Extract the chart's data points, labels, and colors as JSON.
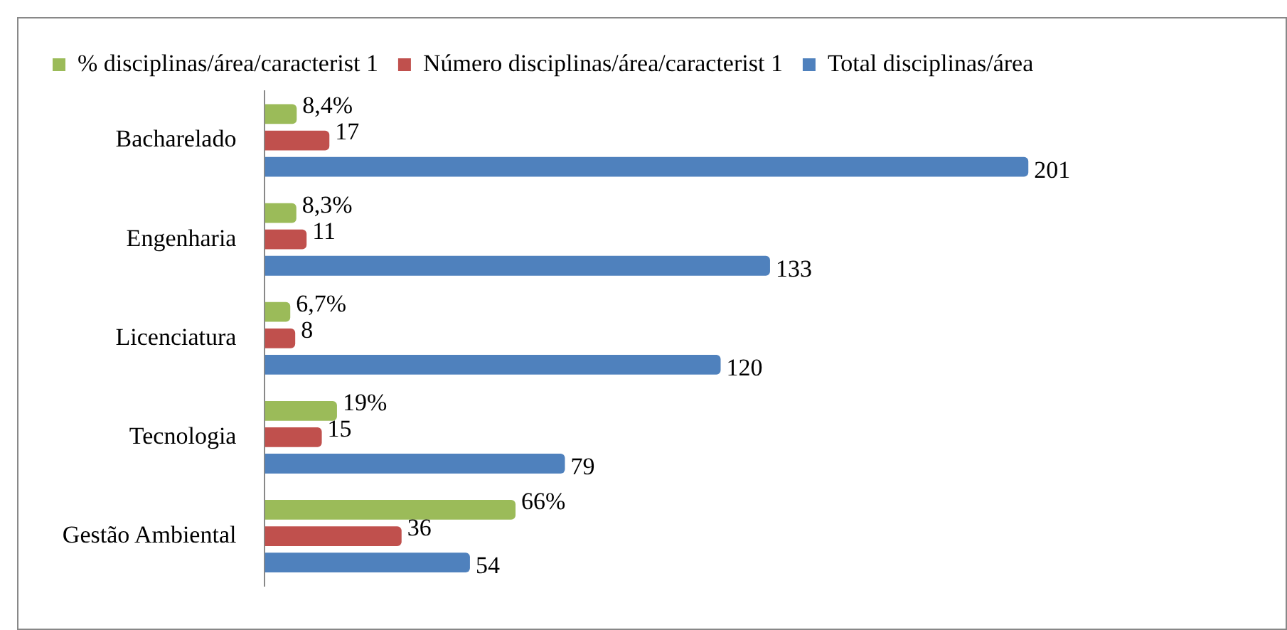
{
  "chart_data": {
    "type": "bar",
    "orientation": "horizontal",
    "categories": [
      "Bacharelado",
      "Engenharia",
      "Licenciatura",
      "Tecnologia",
      "Gestão Ambiental"
    ],
    "series": [
      {
        "name": "% disciplinas/área/caracterist 1",
        "color": "#9bbb59",
        "values": [
          8.4,
          8.3,
          6.7,
          19,
          66
        ],
        "value_labels": [
          "8,4%",
          "8,3%",
          "6,7%",
          "19%",
          "66%"
        ]
      },
      {
        "name": "Número disciplinas/área/caracterist 1",
        "color": "#c0504d",
        "values": [
          17,
          11,
          8,
          15,
          36
        ],
        "value_labels": [
          "17",
          "11",
          "8",
          "15",
          "36"
        ]
      },
      {
        "name": "Total disciplinas/área",
        "color": "#4f81bd",
        "values": [
          201,
          133,
          120,
          79,
          54
        ],
        "value_labels": [
          "201",
          "133",
          "120",
          "79",
          "54"
        ]
      }
    ],
    "legend": "top",
    "grid": false
  }
}
